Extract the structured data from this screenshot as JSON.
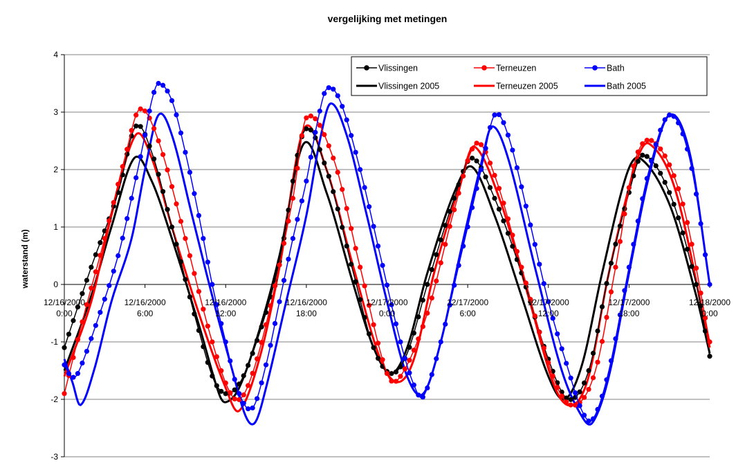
{
  "chart_data": {
    "type": "line",
    "title": "vergelijking met metingen",
    "xlabel": "",
    "ylabel": "waterstand (m)",
    "ylim": [
      -3,
      4
    ],
    "yticks": [
      "4",
      "3",
      "2",
      "1",
      "0",
      "-1",
      "-2",
      "-3"
    ],
    "x_range_hours": [
      0,
      48
    ],
    "xticks": [
      {
        "line1": "12/16/2000",
        "line2": "0:00"
      },
      {
        "line1": "12/16/2000",
        "line2": "6:00"
      },
      {
        "line1": "12/16/2000",
        "line2": "12:00"
      },
      {
        "line1": "12/16/2000",
        "line2": "18:00"
      },
      {
        "line1": "12/17/2000",
        "line2": "0:00"
      },
      {
        "line1": "12/17/2000",
        "line2": "6:00"
      },
      {
        "line1": "12/17/2000",
        "line2": "12:00"
      },
      {
        "line1": "12/17/2000",
        "line2": "18:00"
      },
      {
        "line1": "12/18/2000",
        "line2": "0:00"
      }
    ],
    "grid": "horizontal",
    "legend_position": "top-right",
    "series": [
      {
        "name": "Vlissingen",
        "color": "#000000",
        "style": "markers",
        "points": [
          [
            0,
            -1.1
          ],
          [
            2,
            0.3
          ],
          [
            4,
            1.6
          ],
          [
            5.3,
            2.75
          ],
          [
            6.5,
            2.3
          ],
          [
            8,
            1.0
          ],
          [
            10,
            -0.8
          ],
          [
            11.3,
            -1.75
          ],
          [
            12.6,
            -1.85
          ],
          [
            14,
            -1.2
          ],
          [
            16,
            0.4
          ],
          [
            17.8,
            2.65
          ],
          [
            19.5,
            2.0
          ],
          [
            21.5,
            0.2
          ],
          [
            23,
            -1.1
          ],
          [
            24.3,
            -1.55
          ],
          [
            25.5,
            -1.2
          ],
          [
            27,
            0.0
          ],
          [
            29,
            1.5
          ],
          [
            30.3,
            2.2
          ],
          [
            32,
            1.5
          ],
          [
            34,
            0.2
          ],
          [
            36,
            -1.3
          ],
          [
            37.5,
            -2.0
          ],
          [
            39,
            -1.5
          ],
          [
            40.5,
            0.2
          ],
          [
            42,
            1.6
          ],
          [
            43,
            2.25
          ],
          [
            45,
            1.6
          ],
          [
            47,
            0.0
          ],
          [
            48,
            -1.25
          ]
        ]
      },
      {
        "name": "Terneuzen",
        "color": "#ff0000",
        "style": "markers",
        "points": [
          [
            0,
            -1.9
          ],
          [
            1.5,
            -0.5
          ],
          [
            3,
            0.8
          ],
          [
            4.5,
            2.2
          ],
          [
            5.6,
            3.05
          ],
          [
            7,
            2.5
          ],
          [
            9,
            0.8
          ],
          [
            11,
            -1.0
          ],
          [
            12.5,
            -1.95
          ],
          [
            13.5,
            -1.85
          ],
          [
            15,
            -0.7
          ],
          [
            17,
            1.5
          ],
          [
            18,
            2.9
          ],
          [
            20,
            2.2
          ],
          [
            22,
            0.3
          ],
          [
            24,
            -1.55
          ],
          [
            25,
            -1.6
          ],
          [
            27,
            -0.5
          ],
          [
            29,
            1.3
          ],
          [
            30.6,
            2.45
          ],
          [
            32,
            1.9
          ],
          [
            34,
            0.3
          ],
          [
            36.5,
            -1.7
          ],
          [
            38,
            -2.1
          ],
          [
            39.5,
            -1.5
          ],
          [
            41,
            0.3
          ],
          [
            42.5,
            2.2
          ],
          [
            44,
            2.45
          ],
          [
            46,
            1.4
          ],
          [
            48,
            -1.0
          ]
        ]
      },
      {
        "name": "Bath",
        "color": "#0000ff",
        "style": "markers",
        "points": [
          [
            0,
            -1.4
          ],
          [
            0.5,
            -1.6
          ],
          [
            1,
            -1.55
          ],
          [
            2.5,
            -0.6
          ],
          [
            4,
            0.5
          ],
          [
            5,
            1.5
          ],
          [
            6,
            2.6
          ],
          [
            6.5,
            3.2
          ],
          [
            7,
            3.5
          ],
          [
            8,
            3.2
          ],
          [
            9,
            2.3
          ],
          [
            10,
            1.2
          ],
          [
            11,
            0.0
          ],
          [
            12,
            -1.0
          ],
          [
            13,
            -1.9
          ],
          [
            14,
            -2.15
          ],
          [
            15,
            -1.4
          ],
          [
            16,
            -0.3
          ],
          [
            17,
            0.8
          ],
          [
            18,
            1.8
          ],
          [
            18.8,
            2.8
          ],
          [
            19.5,
            3.4
          ],
          [
            20.5,
            3.2
          ],
          [
            22,
            2.0
          ],
          [
            23.5,
            0.5
          ],
          [
            25,
            -1.0
          ],
          [
            26,
            -1.75
          ],
          [
            26.7,
            -1.95
          ],
          [
            28,
            -1.0
          ],
          [
            29.5,
            0.5
          ],
          [
            31,
            2.0
          ],
          [
            32,
            2.95
          ],
          [
            33,
            2.6
          ],
          [
            34.5,
            1.2
          ],
          [
            36,
            -0.3
          ],
          [
            37.5,
            -1.5
          ],
          [
            38.5,
            -2.2
          ],
          [
            39.3,
            -2.35
          ],
          [
            40.5,
            -1.5
          ],
          [
            42,
            0.3
          ],
          [
            43.5,
            2.0
          ],
          [
            45,
            2.95
          ],
          [
            46.5,
            2.2
          ],
          [
            48,
            0.0
          ]
        ]
      },
      {
        "name": "Vlissingen 2005",
        "color": "#000000",
        "style": "line",
        "points": [
          [
            0,
            -1.5
          ],
          [
            2,
            -0.2
          ],
          [
            3.5,
            1.0
          ],
          [
            5.2,
            2.2
          ],
          [
            6.5,
            1.8
          ],
          [
            8,
            0.8
          ],
          [
            10,
            -0.7
          ],
          [
            11.5,
            -1.9
          ],
          [
            12,
            -2.05
          ],
          [
            13,
            -1.8
          ],
          [
            14.5,
            -0.8
          ],
          [
            16,
            0.5
          ],
          [
            17.8,
            2.45
          ],
          [
            19.5,
            1.6
          ],
          [
            21.5,
            0.0
          ],
          [
            23,
            -1.1
          ],
          [
            24.3,
            -1.55
          ],
          [
            25.5,
            -1.1
          ],
          [
            27,
            0.2
          ],
          [
            29,
            1.6
          ],
          [
            30.3,
            2.05
          ],
          [
            32,
            1.2
          ],
          [
            34,
            -0.2
          ],
          [
            36,
            -1.6
          ],
          [
            37.2,
            -2.0
          ],
          [
            38.5,
            -1.4
          ],
          [
            40,
            0.2
          ],
          [
            41.8,
            1.9
          ],
          [
            42.8,
            2.2
          ],
          [
            45,
            1.4
          ],
          [
            47,
            -0.2
          ],
          [
            48,
            -1.2
          ]
        ]
      },
      {
        "name": "Terneuzen 2005",
        "color": "#ff0000",
        "style": "line",
        "points": [
          [
            0,
            -1.6
          ],
          [
            2,
            -0.3
          ],
          [
            3.5,
            1.2
          ],
          [
            5.3,
            2.6
          ],
          [
            6.5,
            2.2
          ],
          [
            8,
            1.0
          ],
          [
            10,
            -0.5
          ],
          [
            12,
            -1.8
          ],
          [
            13,
            -2.2
          ],
          [
            14.5,
            -1.3
          ],
          [
            16,
            0.3
          ],
          [
            17.8,
            2.7
          ],
          [
            19.5,
            2.0
          ],
          [
            21.5,
            0.3
          ],
          [
            23.5,
            -1.3
          ],
          [
            24.8,
            -1.7
          ],
          [
            26,
            -1.3
          ],
          [
            27.5,
            0.2
          ],
          [
            29.5,
            1.8
          ],
          [
            30.5,
            2.4
          ],
          [
            32.5,
            1.4
          ],
          [
            34.5,
            -0.2
          ],
          [
            36.5,
            -1.8
          ],
          [
            37.8,
            -2.1
          ],
          [
            39,
            -1.6
          ],
          [
            40.5,
            0.2
          ],
          [
            42.5,
            2.1
          ],
          [
            43.5,
            2.45
          ],
          [
            45.5,
            1.6
          ],
          [
            48,
            -1.1
          ]
        ]
      },
      {
        "name": "Bath 2005",
        "color": "#0000ff",
        "style": "line",
        "points": [
          [
            0,
            -1.3
          ],
          [
            0.6,
            -1.7
          ],
          [
            1.2,
            -2.1
          ],
          [
            2.2,
            -1.5
          ],
          [
            3.5,
            -0.3
          ],
          [
            5,
            0.8
          ],
          [
            6,
            2.0
          ],
          [
            7,
            2.95
          ],
          [
            8,
            2.6
          ],
          [
            9.5,
            1.2
          ],
          [
            11,
            -0.2
          ],
          [
            12.5,
            -1.5
          ],
          [
            13.5,
            -2.3
          ],
          [
            14.2,
            -2.4
          ],
          [
            15,
            -1.8
          ],
          [
            16.5,
            -0.3
          ],
          [
            18,
            1.2
          ],
          [
            19,
            2.5
          ],
          [
            19.8,
            3.15
          ],
          [
            21,
            2.6
          ],
          [
            22.5,
            1.2
          ],
          [
            24,
            -0.3
          ],
          [
            25.5,
            -1.6
          ],
          [
            26.7,
            -1.9
          ],
          [
            28,
            -1.0
          ],
          [
            29.5,
            0.6
          ],
          [
            31,
            2.1
          ],
          [
            31.8,
            2.75
          ],
          [
            33,
            2.2
          ],
          [
            35,
            0.3
          ],
          [
            37,
            -1.5
          ],
          [
            38.5,
            -2.3
          ],
          [
            39.3,
            -2.4
          ],
          [
            40.5,
            -1.6
          ],
          [
            42,
            0.2
          ],
          [
            43.5,
            1.9
          ],
          [
            45,
            2.95
          ],
          [
            46.5,
            2.3
          ],
          [
            48,
            0.0
          ]
        ]
      }
    ]
  }
}
